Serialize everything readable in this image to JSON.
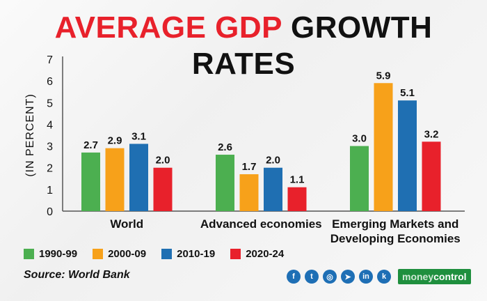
{
  "title": {
    "part1": "AVERAGE GDP",
    "part2": "GROWTH RATES"
  },
  "chart_data": {
    "type": "bar",
    "title": "AVERAGE GDP GROWTH RATES",
    "ylabel": "(IN PERCENT)",
    "xlabel": "",
    "ylim": [
      0,
      7
    ],
    "yticks": [
      0,
      1,
      2,
      3,
      4,
      5,
      6,
      7
    ],
    "categories": [
      [
        "World"
      ],
      [
        "Advanced economies"
      ],
      [
        "Emerging Markets and",
        "Developing Economies"
      ]
    ],
    "series": [
      {
        "name": "1990-99",
        "color": "#4caf50",
        "values": [
          2.7,
          2.6,
          3.0
        ],
        "labels": [
          "2.7",
          "2.6",
          "3.0"
        ]
      },
      {
        "name": "2000-09",
        "color": "#f7a11a",
        "values": [
          2.9,
          1.7,
          5.9
        ],
        "labels": [
          "2.9",
          "1.7",
          "5.9"
        ]
      },
      {
        "name": "2010-19",
        "color": "#1f6fb2",
        "values": [
          3.1,
          2.0,
          5.1
        ],
        "labels": [
          "3.1",
          "2.0",
          "5.1"
        ]
      },
      {
        "name": "2020-24",
        "color": "#e8212b",
        "values": [
          2.0,
          1.1,
          3.2
        ],
        "labels": [
          "2.0",
          "1.1",
          "3.2"
        ]
      }
    ],
    "grid": false,
    "legend_position": "bottom-left"
  },
  "source": "Source: World Bank",
  "social_icons": [
    {
      "name": "facebook-icon",
      "glyph": "f"
    },
    {
      "name": "twitter-icon",
      "glyph": "t"
    },
    {
      "name": "instagram-icon",
      "glyph": "◎"
    },
    {
      "name": "telegram-icon",
      "glyph": "➤"
    },
    {
      "name": "linkedin-icon",
      "glyph": "in"
    },
    {
      "name": "koo-icon",
      "glyph": "k"
    }
  ],
  "brand": {
    "pre": "money",
    "post": "control"
  }
}
